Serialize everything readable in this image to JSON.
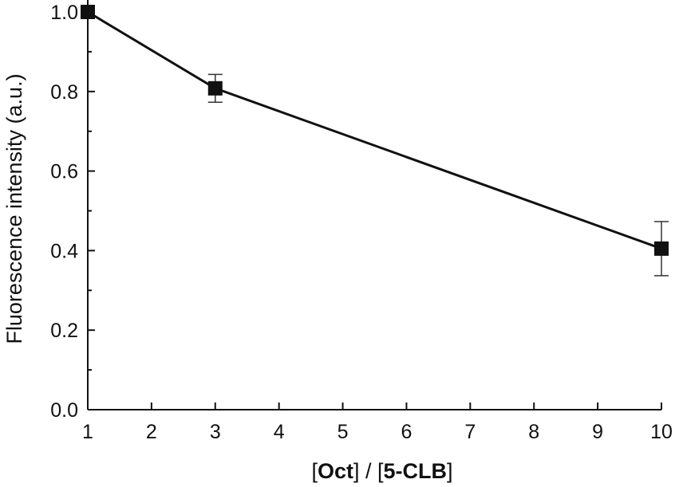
{
  "chart_data": {
    "type": "line",
    "xlabel": {
      "parts": [
        "[",
        "Oct",
        "] / [",
        "5-CLB",
        "]"
      ]
    },
    "ylabel": "Fluorescence intensity (a.u.)",
    "xlim": [
      1,
      10
    ],
    "ylim": [
      0.0,
      1.0
    ],
    "xticks": [
      1,
      2,
      3,
      4,
      5,
      6,
      7,
      8,
      9,
      10
    ],
    "xtick_labels": [
      "1",
      "2",
      "3",
      "4",
      "5",
      "6",
      "7",
      "8",
      "9",
      "10"
    ],
    "yticks": [
      0.0,
      0.2,
      0.4,
      0.6,
      0.8,
      1.0
    ],
    "ytick_labels": [
      "0.0",
      "0.2",
      "0.4",
      "0.6",
      "0.8",
      "1.0"
    ],
    "grid": false,
    "series": [
      {
        "marker": "filled-square",
        "color": "#111111",
        "points": [
          {
            "x": 1,
            "y": 1.0,
            "err": 0.0
          },
          {
            "x": 3,
            "y": 0.808,
            "err": 0.035
          },
          {
            "x": 10,
            "y": 0.405,
            "err": 0.068
          }
        ]
      }
    ]
  }
}
